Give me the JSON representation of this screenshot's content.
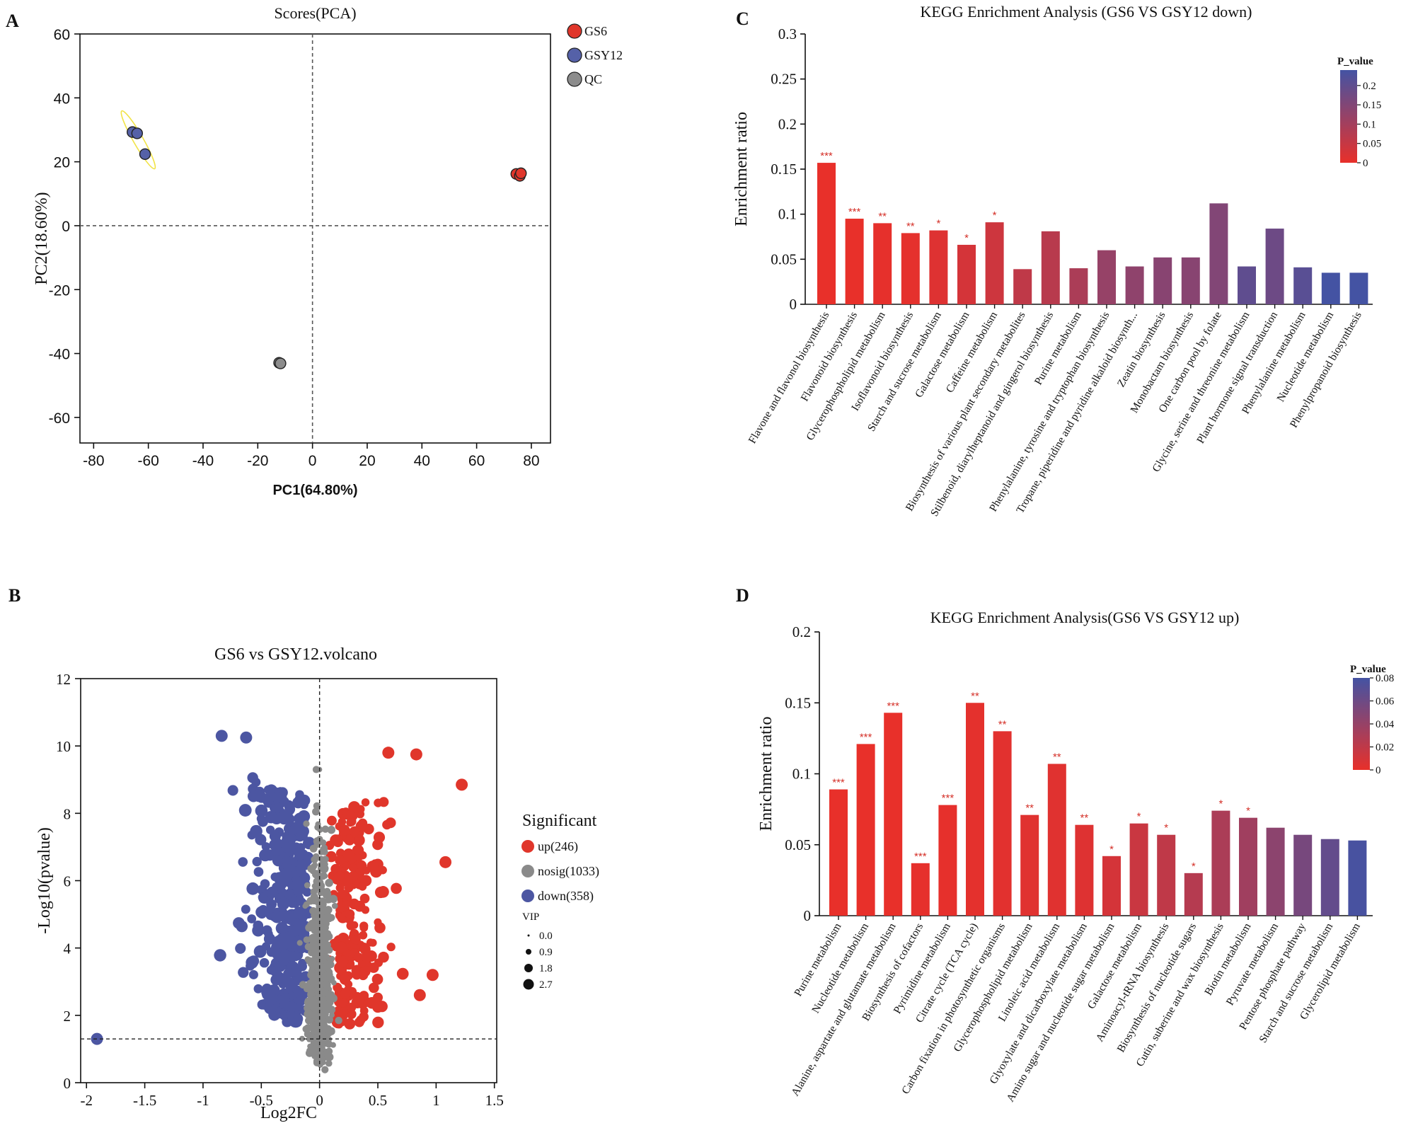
{
  "panels": {
    "a_letter": "A",
    "b_letter": "B",
    "c_letter": "C",
    "d_letter": "D"
  },
  "chart_data": [
    {
      "id": "pca",
      "type": "scatter",
      "title": "Scores(PCA)",
      "xlabel": "PC1(64.80%)",
      "ylabel": "PC2(18.60%)",
      "xlim": [
        -85,
        87
      ],
      "ylim": [
        -68,
        60
      ],
      "xticks": [
        -80,
        -60,
        -40,
        -20,
        0,
        20,
        40,
        60,
        80
      ],
      "yticks": [
        -60,
        -40,
        -20,
        0,
        20,
        40,
        60
      ],
      "reference_lines": {
        "x": 0,
        "y": 0
      },
      "series": [
        {
          "name": "GS6",
          "color": "#e0362b",
          "points": [
            [
              74.5,
              16.2
            ],
            [
              75.8,
              15.6
            ],
            [
              76.2,
              16.4
            ]
          ]
        },
        {
          "name": "GSY12",
          "color": "#5561a8",
          "points": [
            [
              -65.8,
              29.3
            ],
            [
              -64.1,
              28.9
            ],
            [
              -61.2,
              22.4
            ]
          ]
        },
        {
          "name": "QC",
          "color": "#8c8c8c",
          "points": [
            [
              -12.2,
              -42.9
            ],
            [
              -11.7,
              -43.1
            ]
          ]
        }
      ],
      "ellipse": {
        "group": "GSY12",
        "color": "#f1e346"
      }
    },
    {
      "id": "volcano",
      "type": "scatter",
      "title": "GS6 vs GSY12.volcano",
      "xlabel": "Log2FC",
      "ylabel": "-Log10(pvalue)",
      "xlim": [
        -2.05,
        1.52
      ],
      "ylim": [
        0,
        12
      ],
      "xticks": [
        -2,
        -1.5,
        -1,
        -0.5,
        0,
        0.5,
        1,
        1.5
      ],
      "yticks": [
        0,
        2,
        4,
        6,
        8,
        10,
        12
      ],
      "threshold_lines": {
        "x": 0,
        "y": 1.3
      },
      "legend": {
        "title": "Significant",
        "entries": [
          {
            "label": "up(246)",
            "color": "#e0362b"
          },
          {
            "label": "nosig(1033)",
            "color": "#8a8a8a"
          },
          {
            "label": "down(358)",
            "color": "#4c56a2"
          }
        ],
        "size_title": "VIP",
        "sizes": [
          "0.0",
          "0.9",
          "1.8",
          "2.7"
        ]
      },
      "highlight_points": [
        {
          "x": -1.91,
          "y": 1.3,
          "group": "down"
        },
        {
          "x": -0.84,
          "y": 10.3,
          "group": "down"
        },
        {
          "x": -0.63,
          "y": 10.25,
          "group": "down"
        },
        {
          "x": 0.59,
          "y": 9.8,
          "group": "up"
        },
        {
          "x": 0.83,
          "y": 9.75,
          "group": "up"
        },
        {
          "x": 1.22,
          "y": 8.85,
          "group": "up"
        },
        {
          "x": 1.08,
          "y": 6.55,
          "group": "up"
        },
        {
          "x": 0.97,
          "y": 3.2,
          "group": "up"
        },
        {
          "x": 0.86,
          "y": 2.6,
          "group": "up"
        }
      ]
    },
    {
      "id": "kegg_down",
      "type": "bar",
      "title": "KEGG Enrichment Analysis (GS6 VS GSY12 down)",
      "ylabel": "Enrichment ratio",
      "ylim": [
        0,
        0.3
      ],
      "yticks": [
        "0",
        "0.05",
        "0.1",
        "0.15",
        "0.2",
        "0.25",
        "0.3"
      ],
      "categories": [
        "Flavone and flavonol biosynthesis",
        "Flavonoid biosynthesis",
        "Glycerophospholipid metabolism",
        "Isoflavonoid biosynthesis",
        "Starch and sucrose metabolism",
        "Galactose metabolism",
        "Caffeine metabolism",
        "Biosynthesis of various plant secondary metabolites",
        "Stilbenoid, diarylheptanoid and gingerol biosynthesis",
        "Purine metabolism",
        "Phenylalanine, tyrosine and tryptophan biosynthesis",
        "Tropane, piperidine and pyridine alkaloid biosynth...",
        "Zeatin biosynthesis",
        "Monobactam biosynthesis",
        "One carbon pool by folate",
        "Glycine, serine and threonine metabolism",
        "Plant hormone signal transduction",
        "Phenylalanine metabolism",
        "Nucleotide metabolism",
        "Phenylpropanoid biosynthesis"
      ],
      "values": [
        0.157,
        0.095,
        0.09,
        0.079,
        0.082,
        0.066,
        0.091,
        0.039,
        0.081,
        0.04,
        0.06,
        0.042,
        0.052,
        0.052,
        0.112,
        0.042,
        0.084,
        0.041,
        0.035,
        0.035
      ],
      "p_values": [
        0.0,
        0.0,
        0.003,
        0.005,
        0.015,
        0.03,
        0.04,
        0.06,
        0.07,
        0.09,
        0.12,
        0.13,
        0.14,
        0.14,
        0.15,
        0.2,
        0.18,
        0.21,
        0.24,
        0.24
      ],
      "significance": [
        "***",
        "***",
        "**",
        "**",
        "*",
        "*",
        "*",
        "",
        "",
        "",
        "",
        "",
        "",
        "",
        "",
        "",
        "",
        "",
        "",
        ""
      ],
      "colorbar": {
        "title": "P_value",
        "min": 0,
        "max": 0.24,
        "ticks": [
          "0",
          "0.05",
          "0.1",
          "0.15",
          "0.2"
        ],
        "low_color": "#e8302a",
        "high_color": "#4453a3"
      }
    },
    {
      "id": "kegg_up",
      "type": "bar",
      "title": "KEGG Enrichment Analysis(GS6 VS GSY12 up)",
      "ylabel": "Enrichment ratio",
      "ylim": [
        0,
        0.2
      ],
      "yticks": [
        "0",
        "0.05",
        "0.1",
        "0.15",
        "0.2"
      ],
      "categories": [
        "Purine metabolism",
        "Nucleotide metabolism",
        "Alanine, aspartate and glutamate metabolism",
        "Biosynthesis of cofactors",
        "Pyrimidine metabolism",
        "Citrate cycle (TCA cycle)",
        "Carbon fixation in photosynthetic organisms",
        "Glycerophospholipid metabolism",
        "Linoleic acid metabolism",
        "Glyoxylate and dicarboxylate metabolism",
        "Amino sugar and nucleotide sugar metabolism",
        "Galactose metabolism",
        "Aminoacyl-tRNA biosynthesis",
        "Biosynthesis of nucleotide sugars",
        "Cutin, suberine and wax biosynthesis",
        "Biotin metabolism",
        "Pyruvate metabolism",
        "Pentose phosphate pathway",
        "Starch and sucrose metabolism",
        "Glycerolipid metabolism"
      ],
      "values": [
        0.089,
        0.121,
        0.143,
        0.037,
        0.078,
        0.15,
        0.13,
        0.071,
        0.107,
        0.064,
        0.042,
        0.065,
        0.057,
        0.03,
        0.074,
        0.069,
        0.062,
        0.057,
        0.054,
        0.053
      ],
      "p_values": [
        0.0,
        0.0,
        0.0,
        0.001,
        0.001,
        0.002,
        0.003,
        0.004,
        0.004,
        0.005,
        0.01,
        0.015,
        0.02,
        0.025,
        0.03,
        0.035,
        0.045,
        0.055,
        0.065,
        0.078
      ],
      "significance": [
        "***",
        "***",
        "***",
        "***",
        "***",
        "**",
        "**",
        "**",
        "**",
        "**",
        "*",
        "*",
        "*",
        "*",
        "*",
        "*",
        "",
        "",
        "",
        ""
      ],
      "colorbar": {
        "title": "P_value",
        "min": 0,
        "max": 0.08,
        "ticks": [
          "0",
          "0.02",
          "0.04",
          "0.06",
          "0.08"
        ],
        "low_color": "#e8302a",
        "high_color": "#4453a3"
      }
    }
  ]
}
